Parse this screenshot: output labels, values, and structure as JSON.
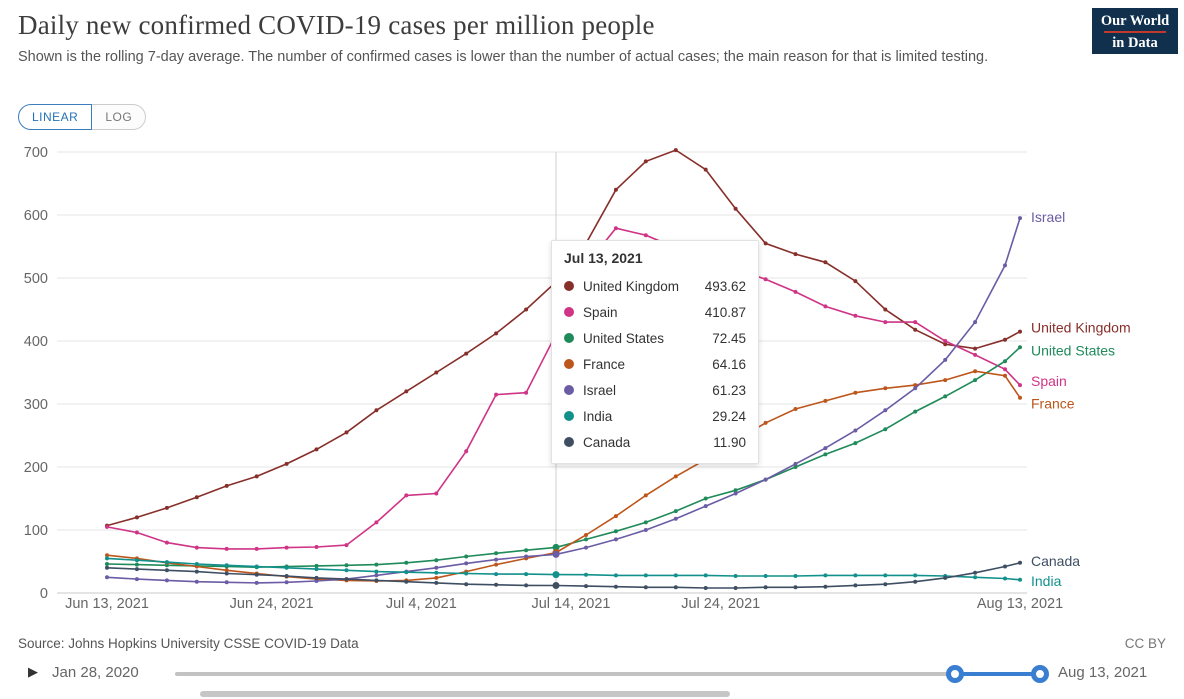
{
  "header": {
    "title": "Daily new confirmed COVID-19 cases per million people",
    "subtitle": "Shown is the rolling 7-day average. The number of confirmed cases is lower than the number of actual cases; the main reason for that is limited testing.",
    "logo": {
      "line1": "Our World",
      "line2": "in Data",
      "bg_color": "#10304e",
      "accent_color": "#c0392b"
    }
  },
  "controls": {
    "linear_label": "LINEAR",
    "log_label": "LOG",
    "active": "LINEAR"
  },
  "tooltip": {
    "date": "Jul 13, 2021",
    "rows": [
      {
        "name": "United Kingdom",
        "value": "493.62",
        "color": "#872f2a"
      },
      {
        "name": "Spain",
        "value": "410.87",
        "color": "#cf3486"
      },
      {
        "name": "United States",
        "value": "72.45",
        "color": "#1f8a5a"
      },
      {
        "name": "France",
        "value": "64.16",
        "color": "#bd561b"
      },
      {
        "name": "Israel",
        "value": "61.23",
        "color": "#6b5ca5"
      },
      {
        "name": "India",
        "value": "29.24",
        "color": "#12918c"
      },
      {
        "name": "Canada",
        "value": "11.90",
        "color": "#3e4e63"
      }
    ]
  },
  "chart_data": {
    "type": "line",
    "title": "Daily new confirmed COVID-19 cases per million people",
    "xlabel": "",
    "ylabel": "",
    "ylim": [
      0,
      700
    ],
    "grid": true,
    "legend_position": "end-of-line-labels",
    "x_unit": "days since Jun 13, 2021",
    "x_days": [
      0,
      2,
      4,
      6,
      8,
      10,
      12,
      14,
      16,
      18,
      20,
      22,
      24,
      26,
      28,
      30,
      32,
      34,
      36,
      38,
      40,
      42,
      44,
      46,
      48,
      50,
      52,
      54,
      56,
      58,
      60,
      61
    ],
    "xticks": [
      {
        "day": 0,
        "label": "Jun 13, 2021"
      },
      {
        "day": 11,
        "label": "Jun 24, 2021"
      },
      {
        "day": 21,
        "label": "Jul 4, 2021"
      },
      {
        "day": 31,
        "label": "Jul 14, 2021"
      },
      {
        "day": 41,
        "label": "Jul 24, 2021"
      },
      {
        "day": 61,
        "label": "Aug 13, 2021"
      }
    ],
    "yticks": [
      0,
      100,
      200,
      300,
      400,
      500,
      600,
      700
    ],
    "hover_day": 30,
    "hover_date": "Jul 13, 2021",
    "series": [
      {
        "name": "United Kingdom",
        "color": "#872f2a",
        "label_dy": -3,
        "values": [
          107,
          120,
          135,
          152,
          170,
          185,
          205,
          228,
          255,
          290,
          320,
          350,
          380,
          412,
          450,
          493.62,
          555,
          640,
          685,
          703,
          672,
          610,
          555,
          538,
          525,
          495,
          450,
          418,
          395,
          388,
          402,
          415
        ]
      },
      {
        "name": "Spain",
        "color": "#cf3486",
        "label_dy": -3,
        "values": [
          105,
          96,
          80,
          72,
          70,
          70,
          72,
          73,
          76,
          112,
          155,
          158,
          225,
          315,
          318,
          410.87,
          520,
          579,
          568,
          548,
          530,
          515,
          498,
          478,
          455,
          440,
          430,
          430,
          400,
          378,
          355,
          330
        ]
      },
      {
        "name": "United States",
        "color": "#1f8a5a",
        "label_dy": 4,
        "values": [
          46,
          45,
          44,
          43,
          42,
          41,
          42,
          43,
          44,
          45,
          48,
          52,
          58,
          63,
          68,
          72.45,
          85,
          98,
          112,
          130,
          150,
          163,
          180,
          200,
          220,
          238,
          260,
          288,
          312,
          338,
          368,
          390
        ]
      },
      {
        "name": "France",
        "color": "#bd561b",
        "label_dy": 7,
        "values": [
          60,
          55,
          48,
          42,
          36,
          31,
          26,
          22,
          20,
          19,
          20,
          24,
          34,
          45,
          55,
          64.16,
          92,
          122,
          155,
          185,
          212,
          242,
          270,
          292,
          305,
          318,
          325,
          330,
          338,
          352,
          345,
          310
        ]
      },
      {
        "name": "Israel",
        "color": "#6b5ca5",
        "label_dy": 0,
        "values": [
          25,
          22,
          20,
          18,
          17,
          16,
          17,
          19,
          22,
          28,
          34,
          40,
          47,
          53,
          58,
          61.23,
          72,
          85,
          100,
          118,
          138,
          158,
          180,
          205,
          230,
          258,
          290,
          325,
          370,
          430,
          520,
          595
        ]
      },
      {
        "name": "India",
        "color": "#12918c",
        "label_dy": 2,
        "values": [
          55,
          52,
          49,
          46,
          44,
          42,
          40,
          38,
          36,
          34,
          33,
          32,
          31,
          30,
          30,
          29.24,
          29,
          28,
          28,
          28,
          28,
          27,
          27,
          27,
          28,
          28,
          28,
          28,
          27,
          25,
          23,
          21
        ]
      },
      {
        "name": "Canada",
        "color": "#3e4e63",
        "label_dy": -1,
        "values": [
          40,
          38,
          36,
          34,
          31,
          29,
          27,
          24,
          22,
          20,
          18,
          16,
          14,
          13,
          12,
          11.9,
          11,
          10,
          9,
          9,
          8,
          8,
          9,
          9,
          10,
          12,
          14,
          18,
          24,
          32,
          42,
          48
        ]
      }
    ]
  },
  "footer": {
    "source": "Source: Johns Hopkins University CSSE COVID-19 Data",
    "license": "CC BY"
  },
  "timeline": {
    "start": "Jan 28, 2020",
    "end": "Aug 13, 2021",
    "play_icon": "▶"
  }
}
